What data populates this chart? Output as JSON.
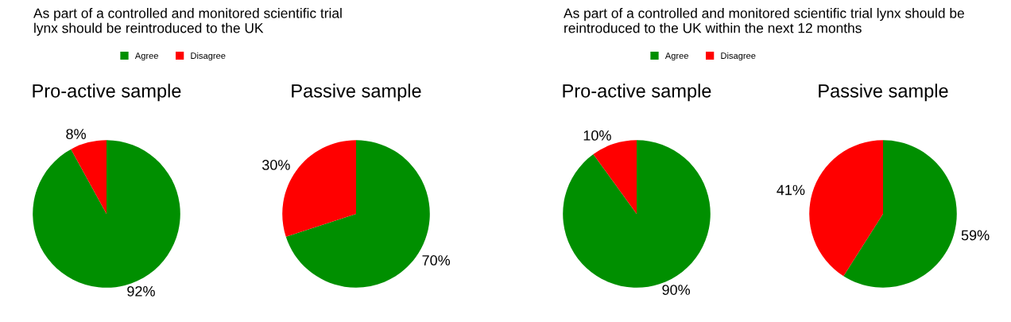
{
  "chart_data": [
    {
      "type": "pie",
      "title": "Pro-active sample",
      "annotations": [
        "As part of a controlled and monitored scientific trial\nlynx should be reintroduced to the UK"
      ],
      "legend": "top",
      "categories": [
        "Agree",
        "Disagree"
      ],
      "values": [
        92,
        8
      ],
      "value_labels": [
        "92%",
        "8%"
      ],
      "colors": [
        "#008f00",
        "#ff0000"
      ]
    },
    {
      "type": "pie",
      "title": "Passive sample",
      "categories": [
        null,
        null
      ],
      "values": [
        70,
        30
      ],
      "value_labels": [
        "70%",
        "30%"
      ],
      "colors": [
        "#008f00",
        "#ff0000"
      ]
    },
    {
      "type": "pie",
      "title": "Pro-active sample",
      "annotations": [
        "As part of a controlled and monitored scientific trial lynx should be\nreintroduced to the UK within the next 12 months"
      ],
      "legend": "top",
      "categories": [
        "Agree",
        "Disagree"
      ],
      "values": [
        90,
        10
      ],
      "value_labels": [
        "90%",
        "10%"
      ],
      "colors": [
        "#008f00",
        "#ff0000"
      ]
    },
    {
      "type": "pie",
      "title": "Passive sample",
      "categories": [
        null,
        null
      ],
      "values": [
        59,
        41
      ],
      "value_labels": [
        "59%",
        "41%"
      ],
      "colors": [
        "#008f00",
        "#ff0000"
      ]
    }
  ]
}
